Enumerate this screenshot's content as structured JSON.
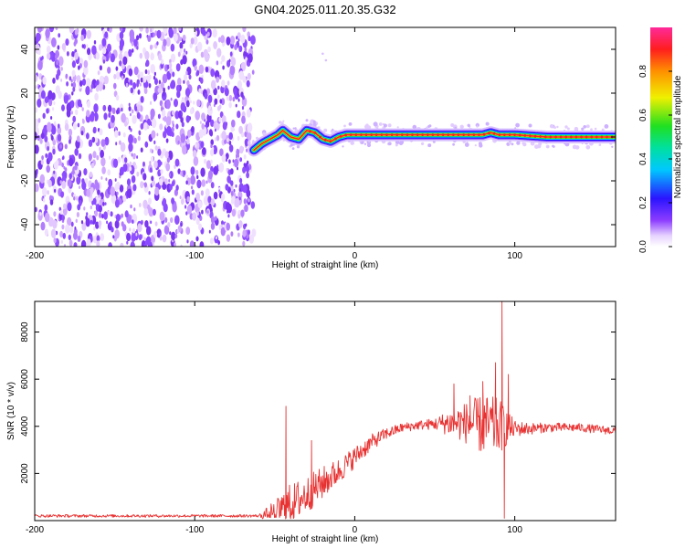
{
  "title": "GN04.2025.011.20.35.G32",
  "chart_data": [
    {
      "type": "heatmap",
      "xlabel": "Height of straight line (km)",
      "ylabel": "Frequency (Hz)",
      "xlim": [
        -200,
        163
      ],
      "ylim": [
        -50,
        50
      ],
      "xticks": [
        -200,
        -100,
        0,
        100
      ],
      "yticks": [
        -40,
        -20,
        0,
        20,
        40
      ],
      "colorbar": {
        "label": "Normalized spectral amplitude",
        "range": [
          0,
          1
        ],
        "ticks": [
          "0.0",
          "0.2",
          "0.4",
          "0.6",
          "0.8"
        ]
      },
      "noise_region_x": [
        -200,
        -63
      ],
      "ridge": {
        "x": [
          -63,
          -58,
          -53,
          -48,
          -45,
          -40,
          -35,
          -30,
          -25,
          -20,
          -15,
          -10,
          -5,
          0,
          50,
          80,
          85,
          90,
          100,
          120,
          163
        ],
        "freq": [
          -6,
          -3,
          -1,
          1,
          3,
          0,
          -1,
          3,
          2,
          -1,
          -2,
          0,
          1,
          1,
          1,
          1,
          2,
          1,
          1,
          0,
          0
        ]
      },
      "grid": false
    },
    {
      "type": "line",
      "xlabel": "Height of straight line (km)",
      "ylabel": "SNR (10 * v/v)",
      "xlim": [
        -200,
        163
      ],
      "ylim": [
        0,
        9300
      ],
      "xticks": [
        -200,
        -100,
        0,
        100
      ],
      "yticks": [
        2000,
        4000,
        6000,
        8000
      ],
      "color": "#e83232",
      "envelope": {
        "x": [
          -200,
          -60,
          -50,
          -40,
          -30,
          -20,
          -10,
          0,
          10,
          20,
          30,
          40,
          50,
          60,
          70,
          80,
          90,
          100,
          110,
          120,
          140,
          163
        ],
        "y": [
          200,
          200,
          350,
          700,
          1100,
          1600,
          2100,
          2700,
          3300,
          3700,
          3950,
          4050,
          4100,
          4150,
          4150,
          4050,
          4000,
          3900,
          3900,
          3950,
          3950,
          3800
        ],
        "amp": [
          60,
          60,
          500,
          900,
          800,
          700,
          550,
          450,
          350,
          250,
          200,
          200,
          250,
          600,
          900,
          1300,
          1200,
          350,
          250,
          200,
          180,
          180
        ]
      },
      "spikes": [
        {
          "x": -43,
          "y": 4850
        },
        {
          "x": -27,
          "y": 3400
        },
        {
          "x": 62,
          "y": 5800
        },
        {
          "x": 72,
          "y": 5300
        },
        {
          "x": 80,
          "y": 5900
        },
        {
          "x": 88,
          "y": 6700
        },
        {
          "x": 92,
          "y": 9300
        },
        {
          "x": 93.5,
          "y": 100
        },
        {
          "x": 96,
          "y": 6200
        }
      ],
      "grid": false
    }
  ]
}
